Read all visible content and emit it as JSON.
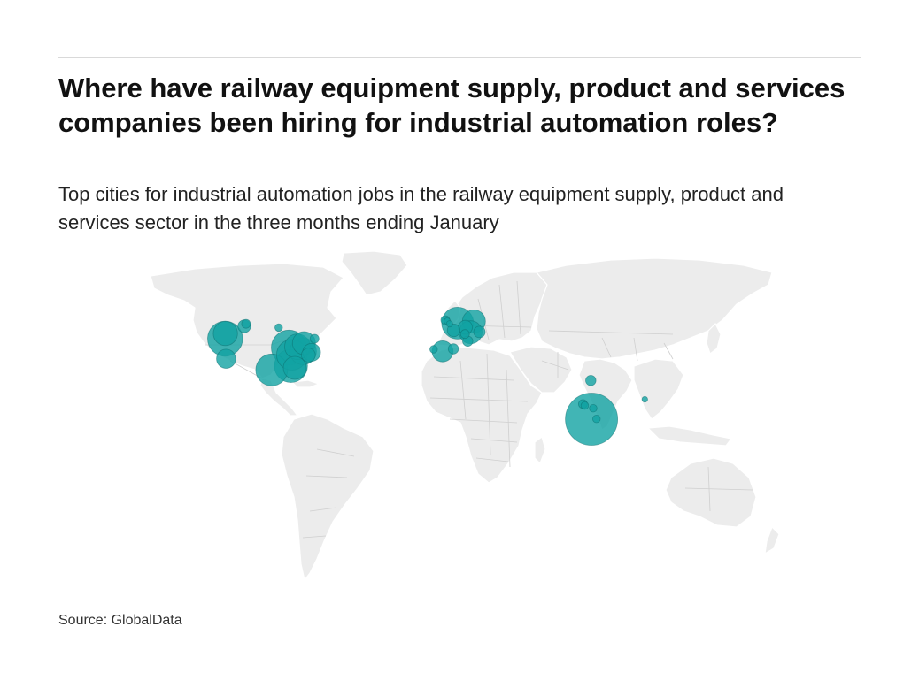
{
  "header": {
    "title": "Where have railway equipment supply, product and services companies been hiring for industrial automation roles?",
    "subtitle": "Top cities for industrial automation jobs in the railway equipment supply, product and services sector in the three months ending January"
  },
  "map": {
    "projection": "equirectangular",
    "bubble_color": "#12a3a3",
    "land_color": "#ececec",
    "markers": [
      {
        "region": "US West Coast",
        "lon": -122.3,
        "lat": 47.6,
        "size": 0.38
      },
      {
        "region": "US West Coast",
        "lon": -122.4,
        "lat": 45.5,
        "size": 0.55
      },
      {
        "region": "US West Coast",
        "lon": -121.9,
        "lat": 37.4,
        "size": 0.3
      },
      {
        "region": "US Mountain",
        "lon": -112.0,
        "lat": 50.5,
        "size": 0.2
      },
      {
        "region": "US Mountain",
        "lon": -111.0,
        "lat": 51.5,
        "size": 0.14
      },
      {
        "region": "US Midwest",
        "lon": -93.2,
        "lat": 50.0,
        "size": 0.12
      },
      {
        "region": "US South",
        "lon": -97.0,
        "lat": 32.9,
        "size": 0.5
      },
      {
        "region": "US Midwest",
        "lon": -87.6,
        "lat": 41.9,
        "size": 0.55
      },
      {
        "region": "US Midwest",
        "lon": -86.0,
        "lat": 39.0,
        "size": 0.48
      },
      {
        "region": "US South",
        "lon": -86.5,
        "lat": 34.5,
        "size": 0.52
      },
      {
        "region": "US South",
        "lon": -84.4,
        "lat": 33.7,
        "size": 0.36
      },
      {
        "region": "US Midwest",
        "lon": -83.0,
        "lat": 42.3,
        "size": 0.4
      },
      {
        "region": "US Northeast",
        "lon": -79.4,
        "lat": 43.7,
        "size": 0.36
      },
      {
        "region": "US Northeast",
        "lon": -79.9,
        "lat": 40.4,
        "size": 0.42
      },
      {
        "region": "US Northeast",
        "lon": -75.2,
        "lat": 40.0,
        "size": 0.28
      },
      {
        "region": "US Northeast",
        "lon": -73.6,
        "lat": 45.5,
        "size": 0.14
      },
      {
        "region": "US Northeast",
        "lon": -77.0,
        "lat": 38.9,
        "size": 0.22
      },
      {
        "region": "UK",
        "lon": -2.2,
        "lat": 53.0,
        "size": 0.14
      },
      {
        "region": "UK",
        "lon": -1.2,
        "lat": 52.6,
        "size": 0.1
      },
      {
        "region": "UK",
        "lon": 0.1,
        "lat": 51.5,
        "size": 0.1
      },
      {
        "region": "Benelux",
        "lon": 4.5,
        "lat": 51.8,
        "size": 0.5
      },
      {
        "region": "France",
        "lon": 2.35,
        "lat": 48.85,
        "size": 0.2
      },
      {
        "region": "Spain",
        "lon": -3.7,
        "lat": 40.4,
        "size": 0.33
      },
      {
        "region": "Spain",
        "lon": -8.6,
        "lat": 41.2,
        "size": 0.12
      },
      {
        "region": "Spain",
        "lon": 2.2,
        "lat": 41.4,
        "size": 0.16
      },
      {
        "region": "Germany",
        "lon": 13.4,
        "lat": 52.5,
        "size": 0.36
      },
      {
        "region": "Germany",
        "lon": 11.6,
        "lat": 48.1,
        "size": 0.36
      },
      {
        "region": "Germany",
        "lon": 8.7,
        "lat": 50.1,
        "size": 0.22
      },
      {
        "region": "Switzerland",
        "lon": 8.5,
        "lat": 47.4,
        "size": 0.14
      },
      {
        "region": "Austria",
        "lon": 16.4,
        "lat": 48.2,
        "size": 0.18
      },
      {
        "region": "Italy",
        "lon": 10.0,
        "lat": 44.5,
        "size": 0.16
      },
      {
        "region": "India",
        "lon": 72.9,
        "lat": 19.1,
        "size": 0.14
      },
      {
        "region": "India",
        "lon": 77.2,
        "lat": 28.6,
        "size": 0.16
      },
      {
        "region": "India",
        "lon": 73.9,
        "lat": 18.5,
        "size": 0.12
      },
      {
        "region": "India",
        "lon": 77.6,
        "lat": 13.0,
        "size": 0.82
      },
      {
        "region": "India",
        "lon": 78.5,
        "lat": 17.4,
        "size": 0.12
      },
      {
        "region": "India",
        "lon": 80.3,
        "lat": 13.1,
        "size": 0.12
      },
      {
        "region": "Vietnam",
        "lon": 106.7,
        "lat": 21.0,
        "size": 0.09
      }
    ]
  },
  "footer": {
    "source": "Source: GlobalData"
  }
}
